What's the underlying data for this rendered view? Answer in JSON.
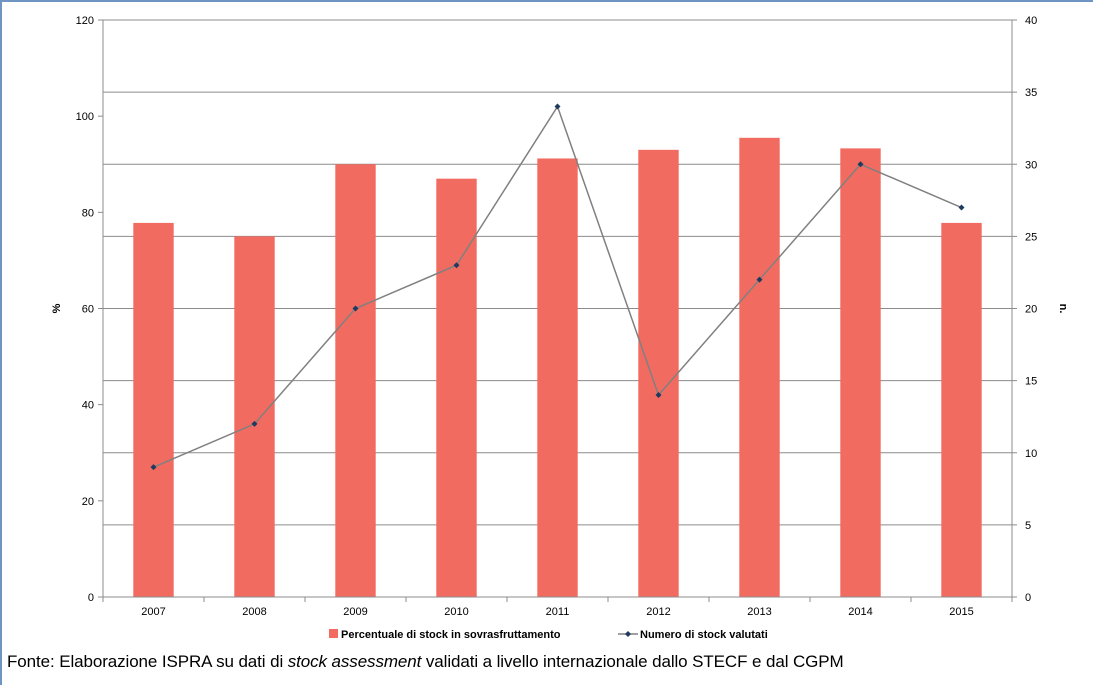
{
  "chart_data": {
    "type": "bar",
    "categories": [
      "2007",
      "2008",
      "2009",
      "2010",
      "2011",
      "2012",
      "2013",
      "2014",
      "2015"
    ],
    "series": [
      {
        "name": "Percentuale  di stock in sovrasfruttamento",
        "type": "bar",
        "axis": "left",
        "color": "#f26b60",
        "values": [
          77.8,
          75.0,
          90.0,
          87.0,
          91.2,
          93.0,
          95.5,
          93.3,
          77.8
        ]
      },
      {
        "name": "Numero di stock valutati",
        "type": "line",
        "axis": "right",
        "color": "#808080",
        "marker_color": "#1f3a5f",
        "values": [
          9,
          12,
          20,
          23,
          34,
          14,
          22,
          30,
          27
        ]
      }
    ],
    "y_left": {
      "label": "%",
      "min": 0,
      "max": 120,
      "ticks": [
        "0",
        "20",
        "40",
        "60",
        "80",
        "100",
        "120"
      ]
    },
    "y_right": {
      "label": "n.",
      "min": 0,
      "max": 40,
      "ticks": [
        "0",
        "5",
        "10",
        "15",
        "20",
        "25",
        "30",
        "35",
        "40"
      ]
    },
    "gridlines": "horizontal",
    "legend_position": "bottom"
  },
  "source": {
    "prefix": "Fonte: Elaborazione ISPRA su dati di ",
    "italic": "stock assessment",
    "suffix": " validati a livello internazionale dallo STECF e dal CGPM"
  }
}
